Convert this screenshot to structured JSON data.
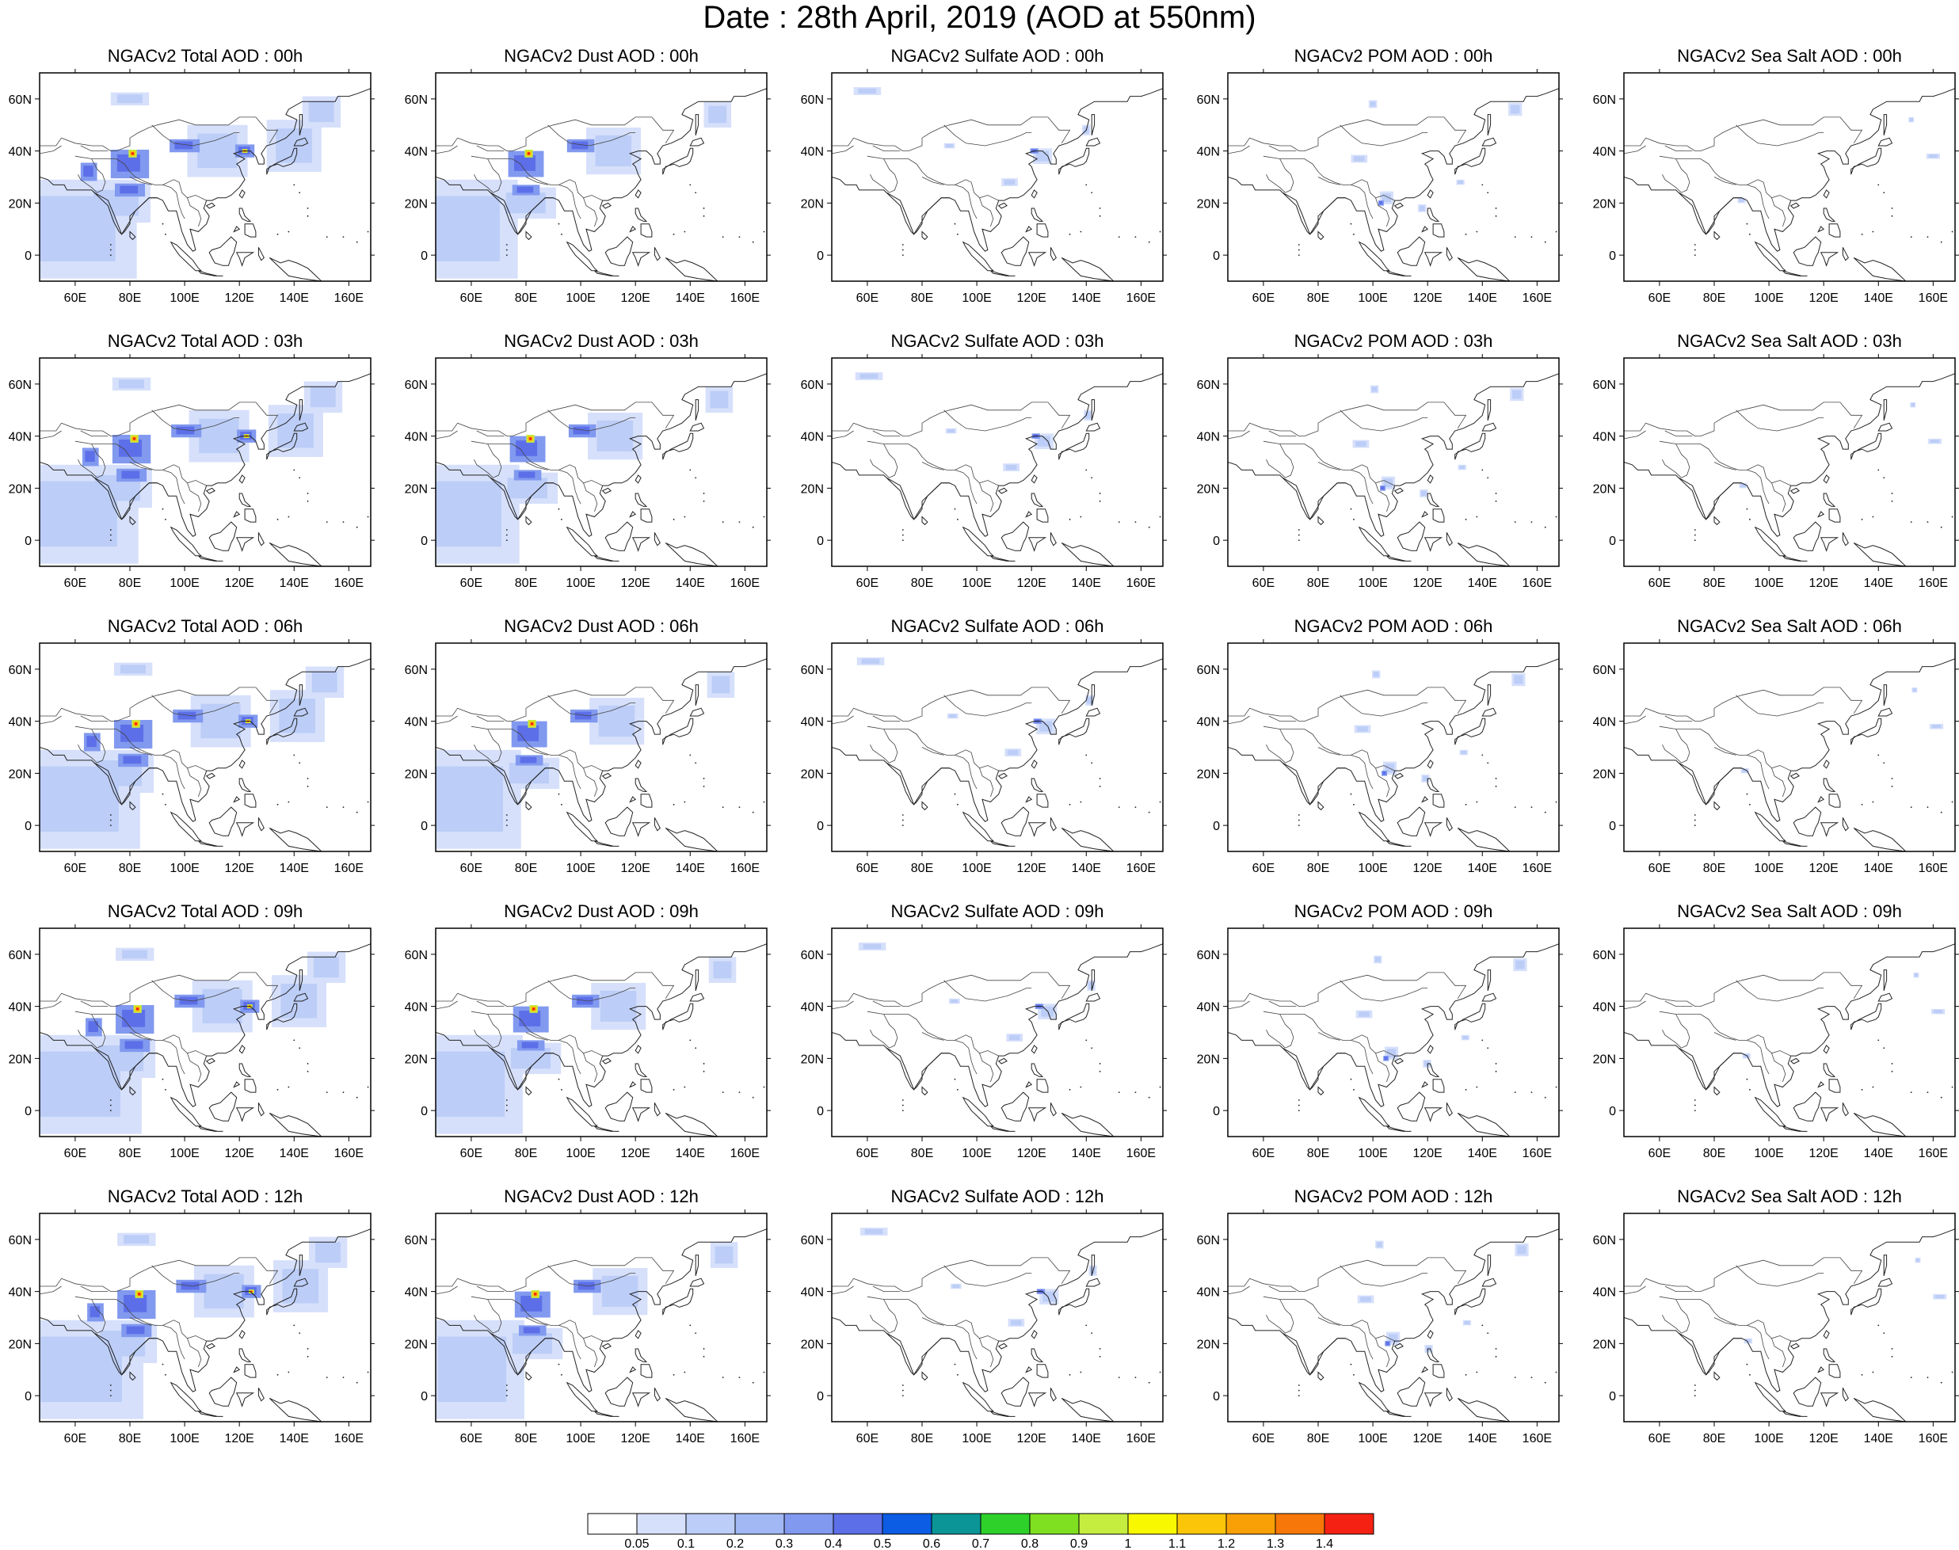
{
  "title": "Date : 28th April, 2019 (AOD at 550nm)",
  "map": {
    "lon_ticks": [
      "60E",
      "80E",
      "100E",
      "120E",
      "140E",
      "160E"
    ],
    "lat_ticks": [
      "60N",
      "40N",
      "20N",
      "0"
    ]
  },
  "columns": [
    {
      "species": "total",
      "titles": [
        "NGACv2 Total AOD : 00h",
        "NGACv2 Total AOD : 03h",
        "NGACv2 Total AOD : 06h",
        "NGACv2 Total AOD : 09h",
        "NGACv2 Total AOD  : 12h"
      ]
    },
    {
      "species": "dust",
      "titles": [
        "NGACv2 Dust AOD : 00h",
        "NGACv2 Dust AOD : 03h",
        "NGACv2 Dust AOD : 06h",
        "NGACv2 Dust AOD : 09h",
        "NGACv2 Dust AOD : 12h"
      ]
    },
    {
      "species": "sulfate",
      "titles": [
        "NGACv2 Sulfate AOD : 00h",
        "NGACv2 Sulfate AOD : 03h",
        "NGACv2 Sulfate AOD : 06h",
        "NGACv2 Sulfate AOD : 09h",
        "NGACv2 Sulfate AOD : 12h"
      ]
    },
    {
      "species": "pom",
      "titles": [
        "NGACv2 POM AOD : 00h",
        "NGACv2 POM AOD : 03h",
        "NGACv2 POM AOD : 06h",
        "NGACv2 POM AOD : 09h",
        "NGACv2 POM  AOD : 12h"
      ]
    },
    {
      "species": "seasalt",
      "titles": [
        "NGACv2 Sea Salt AOD : 00h",
        "NGACv2 Sea Salt AOD : 03h",
        "NGACv2 Sea Salt AOD : 06h",
        "NGACv2 Sea Salt  AOD : 09h",
        "NGACv2 Sea Salt  AOD : 12h"
      ]
    }
  ],
  "colorbar": {
    "labels": [
      "0.05",
      "0.1",
      "0.2",
      "0.3",
      "0.4",
      "0.5",
      "0.6",
      "0.7",
      "0.8",
      "0.9",
      "1",
      "1.1",
      "1.2",
      "1.3",
      "1.4"
    ],
    "colors": [
      "#ffffff",
      "#d6e0fb",
      "#bccdf7",
      "#a1b8f4",
      "#8199ef",
      "#5d6fe8",
      "#0c5de4",
      "#0b9596",
      "#2ed02a",
      "#7fe021",
      "#c4ed40",
      "#f8f800",
      "#fbc50a",
      "#f9a007",
      "#f77708",
      "#f52213"
    ]
  }
}
